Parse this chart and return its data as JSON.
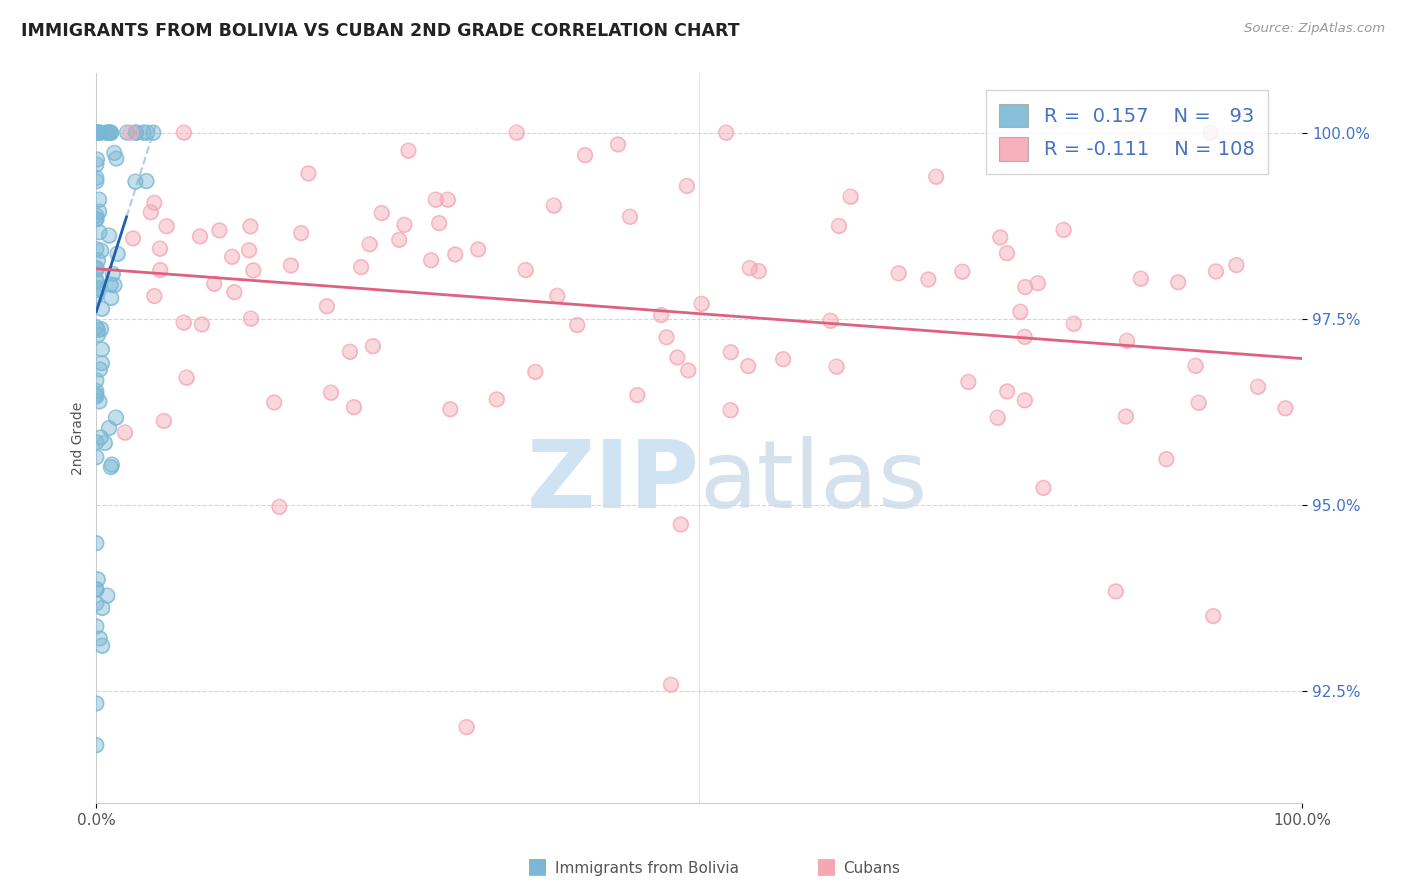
{
  "title": "IMMIGRANTS FROM BOLIVIA VS CUBAN 2ND GRADE CORRELATION CHART",
  "source_text": "Source: ZipAtlas.com",
  "ylabel": "2nd Grade",
  "xlim": [
    0,
    100
  ],
  "ylim": [
    91.0,
    100.8
  ],
  "yticks": [
    92.5,
    95.0,
    97.5,
    100.0
  ],
  "ytick_labels": [
    "92.5%",
    "95.0%",
    "97.5%",
    "100.0%"
  ],
  "xtick_labels": [
    "0.0%",
    "100.0%"
  ],
  "bolivia_color": "#7bb8d4",
  "cuba_color": "#f5a8b4",
  "bolivia_line_color": "#2060b0",
  "cuba_line_color": "#e06080",
  "legend_R_bolivia": "0.157",
  "legend_N_bolivia": "93",
  "legend_R_cuba": "-0.111",
  "legend_N_cuba": "108",
  "label_bolivia": "Immigrants from Bolivia",
  "label_cuba": "Cubans"
}
